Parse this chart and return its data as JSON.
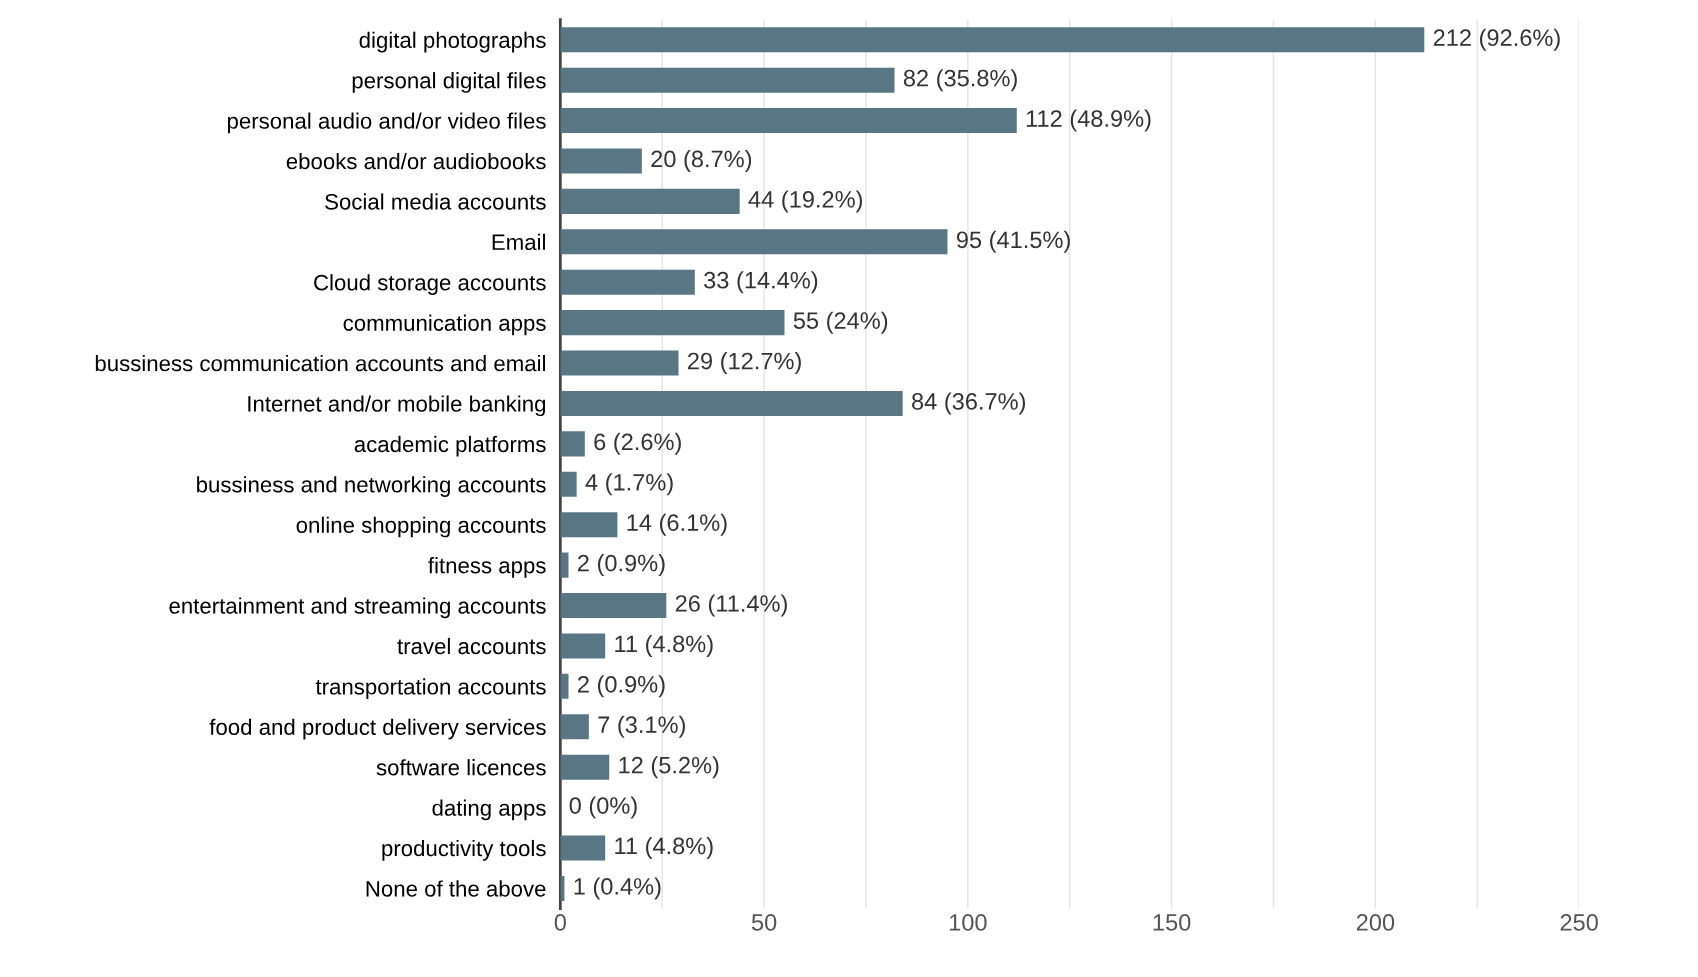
{
  "chart_data": {
    "type": "bar",
    "orientation": "horizontal",
    "categories": [
      "digital photographs",
      "personal digital files",
      "personal audio and/or video files",
      "ebooks and/or audiobooks",
      "Social media accounts",
      "Email",
      "Cloud storage accounts",
      "communication apps",
      "bussiness communication accounts and email",
      "Internet and/or mobile banking",
      "academic platforms",
      "bussiness and networking accounts",
      "online shopping accounts",
      "fitness apps",
      "entertainment and streaming accounts",
      "travel accounts",
      "transportation accounts",
      "food and product delivery services",
      "software licences",
      "dating apps",
      "productivity tools",
      "None of the above"
    ],
    "values": [
      212,
      82,
      112,
      20,
      44,
      95,
      33,
      55,
      29,
      84,
      6,
      4,
      14,
      2,
      26,
      11,
      2,
      7,
      12,
      0,
      11,
      1
    ],
    "value_labels": [
      "212 (92.6%)",
      "82 (35.8%)",
      "112 (48.9%)",
      "20 (8.7%)",
      "44 (19.2%)",
      "95 (41.5%)",
      "33 (14.4%)",
      "55 (24%)",
      "29 (12.7%)",
      "84 (36.7%)",
      "6 (2.6%)",
      "4 (1.7%)",
      "14 (6.1%)",
      "2 (0.9%)",
      "26 (11.4%)",
      "11 (4.8%)",
      "2 (0.9%)",
      "7 (3.1%)",
      "12 (5.2%)",
      "0 (0%)",
      "11 (4.8%)",
      "1 (0.4%)"
    ],
    "color": "#587684",
    "xlim": [
      0,
      250
    ],
    "xticks": [
      0,
      {
        "value": 25,
        "label": null
      },
      50,
      {
        "value": 75,
        "label": null
      },
      100,
      {
        "value": 125,
        "label": null
      },
      150,
      {
        "value": 175,
        "label": null
      },
      200,
      {
        "value": 225,
        "label": null
      },
      250
    ],
    "grid": "x",
    "legend": false
  }
}
